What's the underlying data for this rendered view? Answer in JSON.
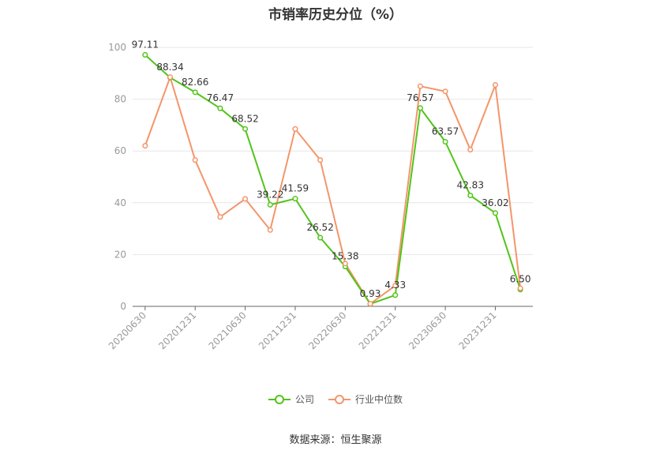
{
  "title": "市销率历史分位（%）",
  "source": "数据来源：恒生聚源",
  "colors": {
    "company": "#52c41a",
    "industry": "#f4956a",
    "grid": "#e6e6e6",
    "axis": "#999999"
  },
  "legend": {
    "company": "公司",
    "industry": "行业中位数"
  },
  "chart_data": {
    "type": "line",
    "x": [
      "20200630",
      "20200930",
      "20201231",
      "20210331",
      "20210630",
      "20210930",
      "20211231",
      "20220331",
      "20220630",
      "20220930",
      "20221231",
      "20230331",
      "20230630",
      "20230930",
      "20231231",
      "20240331"
    ],
    "x_tick_labels": [
      "20200630",
      "20201231",
      "20210630",
      "20211231",
      "20220630",
      "20221231",
      "20230630",
      "20231231"
    ],
    "ylim": [
      0,
      100
    ],
    "yticks": [
      0,
      20,
      40,
      60,
      80,
      100
    ],
    "grid": true,
    "legend_position": "bottom",
    "series": [
      {
        "name": "公司",
        "values": [
          97.11,
          88.34,
          82.66,
          76.47,
          68.52,
          39.22,
          41.59,
          26.52,
          15.38,
          0.93,
          4.33,
          76.57,
          63.57,
          42.83,
          36.02,
          6.5
        ],
        "labels": [
          "97.11",
          "88.34",
          "82.66",
          "76.47",
          "68.52",
          "39.22",
          "41.59",
          "26.52",
          "15.38",
          "0.93",
          "4.33",
          "76.57",
          "63.57",
          "42.83",
          "36.02",
          "6.50"
        ]
      },
      {
        "name": "行业中位数",
        "values": [
          62,
          88.5,
          56.5,
          34.5,
          41.5,
          29.5,
          68.5,
          56.5,
          16.5,
          1.0,
          8.0,
          85.0,
          83.0,
          60.5,
          85.5,
          7.0
        ]
      }
    ]
  }
}
